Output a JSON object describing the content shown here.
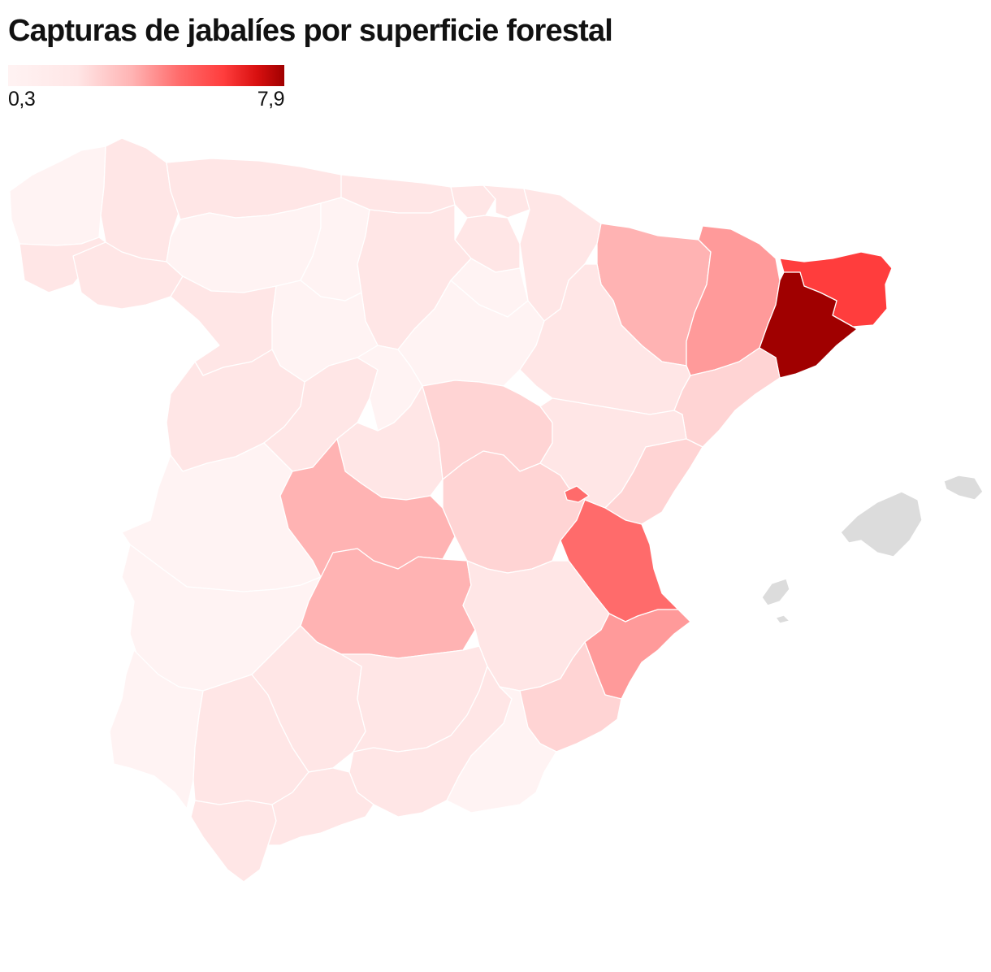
{
  "title": "Capturas de jabalíes por superficie forestal",
  "legend": {
    "min_label": "0,3",
    "max_label": "7,9"
  },
  "colors": {
    "background": "#ffffff",
    "scale": [
      "#fff3f3",
      "#ffe6e6",
      "#ffd4d4",
      "#ffb3b3",
      "#ff9a9a",
      "#ff6b6b",
      "#ff3d3d",
      "#a00000"
    ],
    "islands": "#dcdcdc"
  },
  "regions": [
    {
      "name": "A Coruña",
      "level": 0
    },
    {
      "name": "Lugo",
      "level": 1
    },
    {
      "name": "Asturias",
      "level": 1
    },
    {
      "name": "Cantabria",
      "level": 1
    },
    {
      "name": "Vizcaya",
      "level": 1
    },
    {
      "name": "Guipúzcoa",
      "level": 1
    },
    {
      "name": "Navarra",
      "level": 1
    },
    {
      "name": "Álava",
      "level": 1
    },
    {
      "name": "Pontevedra",
      "level": 1
    },
    {
      "name": "Ourense",
      "level": 1
    },
    {
      "name": "León",
      "level": 0
    },
    {
      "name": "Palencia",
      "level": 0
    },
    {
      "name": "Burgos",
      "level": 1
    },
    {
      "name": "La Rioja",
      "level": 0
    },
    {
      "name": "Zamora",
      "level": 1
    },
    {
      "name": "Valladolid",
      "level": 0
    },
    {
      "name": "Soria",
      "level": 0
    },
    {
      "name": "Huesca",
      "level": 3
    },
    {
      "name": "Lleida",
      "level": 4
    },
    {
      "name": "Girona",
      "level": 6
    },
    {
      "name": "Barcelona",
      "level": 7
    },
    {
      "name": "Zaragoza",
      "level": 1
    },
    {
      "name": "Tarragona",
      "level": 2
    },
    {
      "name": "Salamanca",
      "level": 1
    },
    {
      "name": "Ávila",
      "level": 1
    },
    {
      "name": "Segovia",
      "level": 0
    },
    {
      "name": "Madrid",
      "level": 1
    },
    {
      "name": "Guadalajara",
      "level": 2
    },
    {
      "name": "Teruel",
      "level": 1
    },
    {
      "name": "Castellón",
      "level": 2
    },
    {
      "name": "Cáceres",
      "level": 0
    },
    {
      "name": "Toledo",
      "level": 3
    },
    {
      "name": "Cuenca",
      "level": 2
    },
    {
      "name": "Valencia",
      "level": 5
    },
    {
      "name": "Rincón de Ademuz",
      "level": 5
    },
    {
      "name": "Badajoz",
      "level": 0
    },
    {
      "name": "Ciudad Real",
      "level": 3
    },
    {
      "name": "Albacete",
      "level": 1
    },
    {
      "name": "Alicante",
      "level": 4
    },
    {
      "name": "Murcia",
      "level": 2
    },
    {
      "name": "Huelva",
      "level": 0
    },
    {
      "name": "Sevilla",
      "level": 1
    },
    {
      "name": "Córdoba",
      "level": 1
    },
    {
      "name": "Jaén",
      "level": 1
    },
    {
      "name": "Granada",
      "level": 1
    },
    {
      "name": "Almería",
      "level": 0
    },
    {
      "name": "Cádiz",
      "level": 1
    },
    {
      "name": "Málaga",
      "level": 1
    }
  ],
  "islands": [
    "Mallorca",
    "Menorca",
    "Ibiza",
    "Formentera"
  ]
}
